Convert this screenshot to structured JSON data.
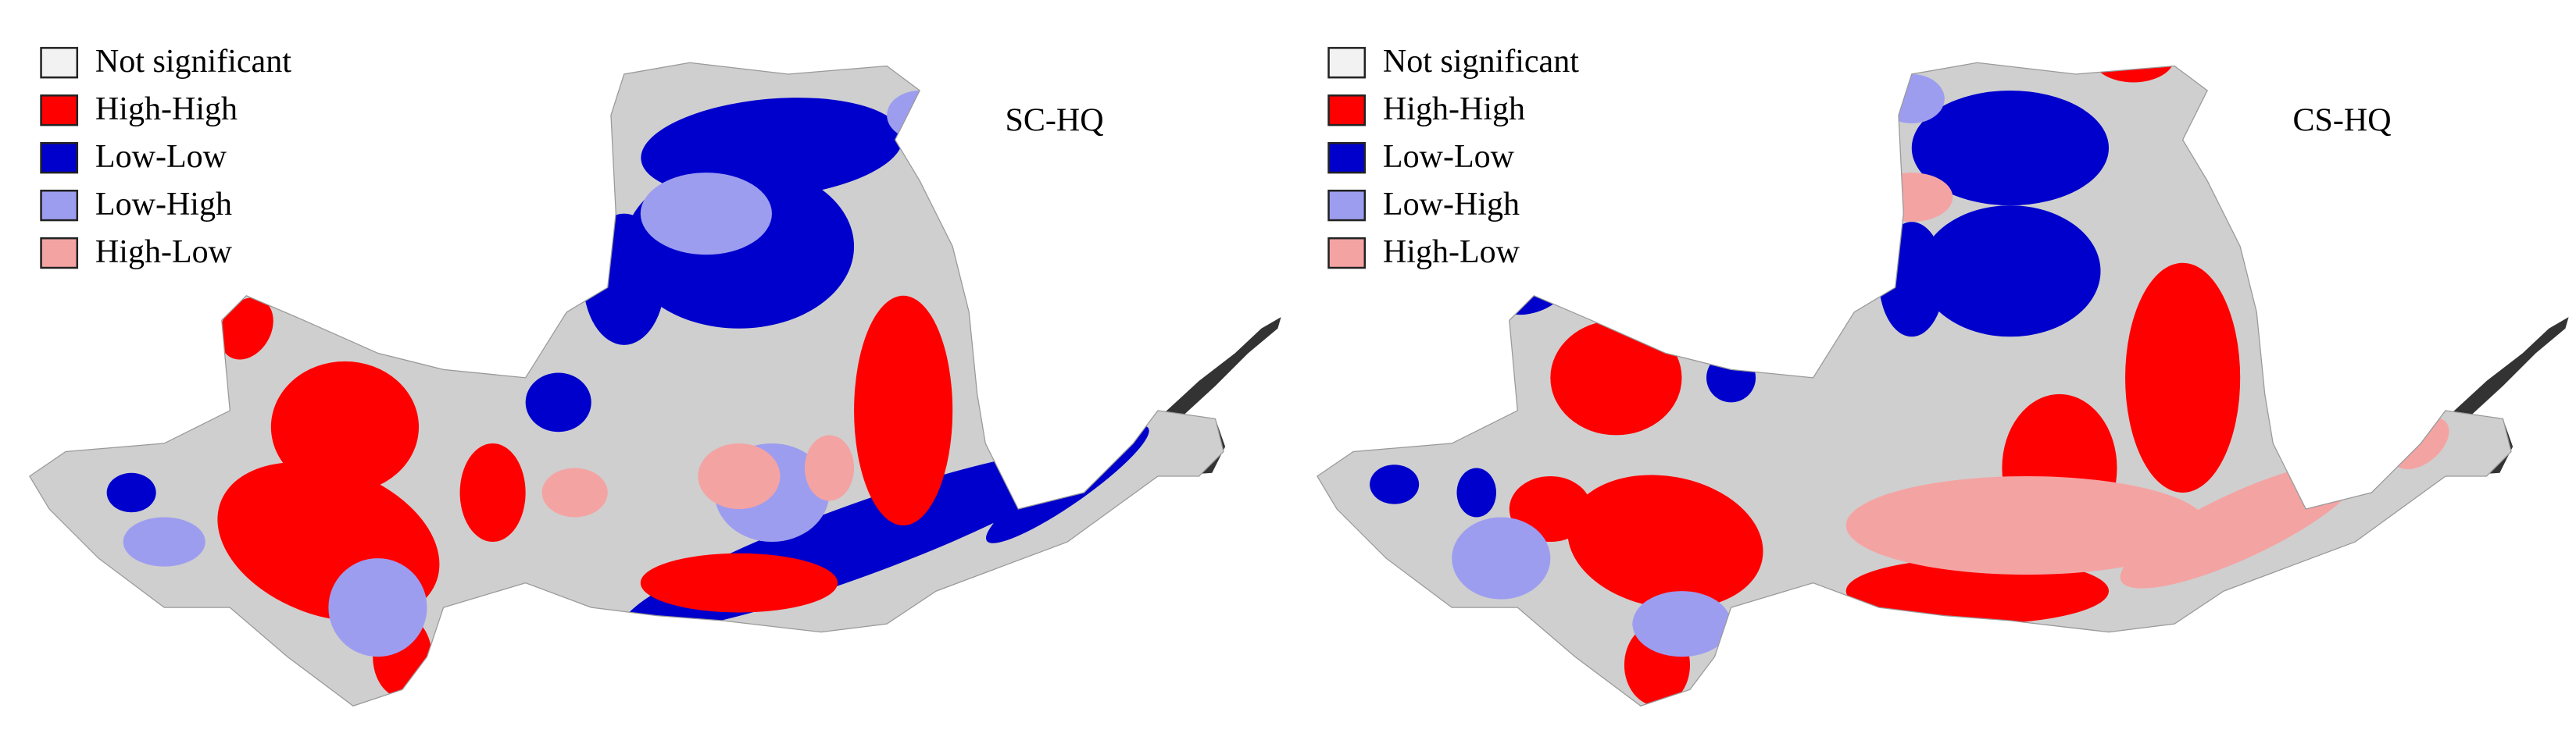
{
  "panels": [
    {
      "label": "SC-HQ",
      "legend": [
        {
          "label": "Not significant",
          "color": "#f2f2f2"
        },
        {
          "label": "High-High",
          "color": "#ff0000"
        },
        {
          "label": "Low-Low",
          "color": "#0000cc"
        },
        {
          "label": "Low-High",
          "color": "#9d9df0"
        },
        {
          "label": "High-Low",
          "color": "#f4a3a3"
        }
      ]
    },
    {
      "label": "CS-HQ",
      "legend": [
        {
          "label": "Not significant",
          "color": "#f2f2f2"
        },
        {
          "label": "High-High",
          "color": "#ff0000"
        },
        {
          "label": "Low-Low",
          "color": "#0000cc"
        },
        {
          "label": "Low-High",
          "color": "#9d9df0"
        },
        {
          "label": "High-Low",
          "color": "#f4a3a3"
        }
      ]
    }
  ]
}
